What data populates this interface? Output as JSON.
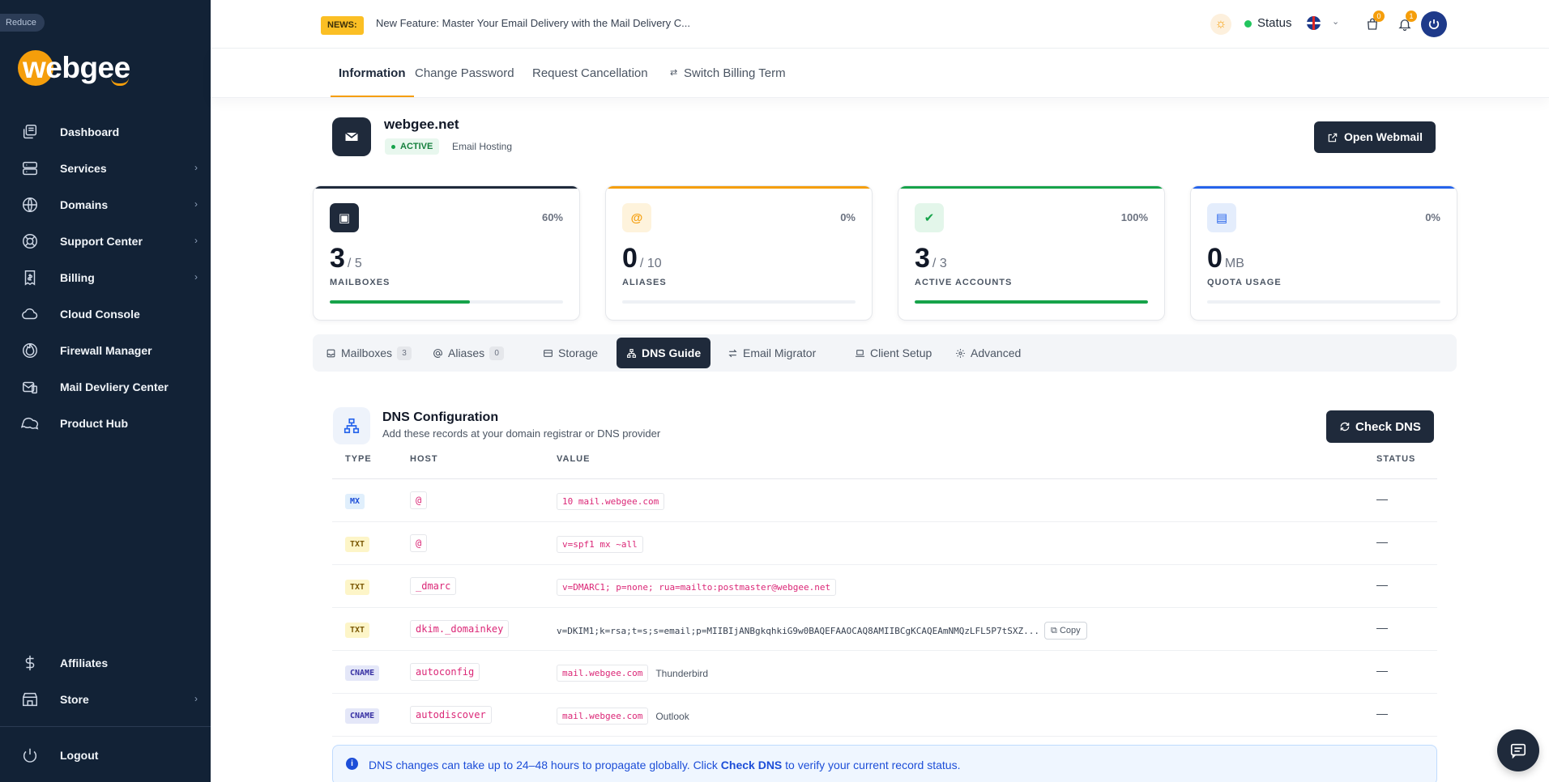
{
  "sidebar": {
    "reduce_label": "Reduce",
    "logo_text": "webgee",
    "items": [
      {
        "label": "Dashboard",
        "icon": "dashboard-icon"
      },
      {
        "label": "Services",
        "icon": "services-icon",
        "chevron": true
      },
      {
        "label": "Domains",
        "icon": "globe-icon",
        "chevron": true
      },
      {
        "label": "Support Center",
        "icon": "lifebuoy-icon",
        "chevron": true
      },
      {
        "label": "Billing",
        "icon": "billing-icon",
        "chevron": true
      },
      {
        "label": "Cloud Console",
        "icon": "cloud-icon"
      },
      {
        "label": "Firewall Manager",
        "icon": "firewall-icon"
      },
      {
        "label": "Mail Devliery Center",
        "icon": "mail-center-icon"
      },
      {
        "label": "Product Hub",
        "icon": "chat-bubbles-icon"
      }
    ],
    "bottom_items": [
      {
        "label": "Affiliates",
        "icon": "dollar-icon"
      },
      {
        "label": "Store",
        "icon": "store-icon",
        "chevron": true
      }
    ],
    "logout_label": "Logout"
  },
  "topbar": {
    "news_badge": "NEWS:",
    "news_text": "New Feature: Master Your Email Delivery with the Mail Delivery C...",
    "status_label": "Status",
    "cart_count": "0",
    "notifications_count": "1"
  },
  "subnav": {
    "tabs": [
      "Information",
      "Change Password",
      "Request Cancellation",
      "Switch Billing Term"
    ]
  },
  "service": {
    "domain": "webgee.net",
    "status": "ACTIVE",
    "plan": "Email Hosting",
    "open_webmail_label": "Open Webmail"
  },
  "stats": [
    {
      "value": "3",
      "sub": "/ 5",
      "label": "MAILBOXES",
      "pct": "60%",
      "fill": 0.6,
      "color": "#16a34a",
      "top_color": "#1f2a3b",
      "icon_bg": "#1f2a3b",
      "icon_color": "#ffffff",
      "icon": "inbox-icon",
      "glyph": "▣"
    },
    {
      "value": "0",
      "sub": "/ 10",
      "label": "ALIASES",
      "pct": "0%",
      "fill": 0,
      "color": "#f59e0b",
      "top_color": "#f59e0b",
      "icon_bg": "#fef3dc",
      "icon_color": "#f59e0b",
      "icon": "at-icon",
      "glyph": "@"
    },
    {
      "value": "3",
      "sub": "/ 3",
      "label": "ACTIVE ACCOUNTS",
      "pct": "100%",
      "fill": 1,
      "color": "#16a34a",
      "top_color": "#16a34a",
      "icon_bg": "#e3f6ea",
      "icon_color": "#16a34a",
      "icon": "check-circle-icon",
      "glyph": "✔"
    },
    {
      "value": "0",
      "sub": "MB",
      "label": "QUOTA USAGE",
      "pct": "0%",
      "fill": 0,
      "color": "#2563eb",
      "top_color": "#2563eb",
      "icon_bg": "#e4edfc",
      "icon_color": "#2563eb",
      "icon": "storage-icon",
      "glyph": "▤"
    }
  ],
  "content_tabs": [
    {
      "label": "Mailboxes",
      "count": "3"
    },
    {
      "label": "Aliases",
      "count": "0"
    },
    {
      "label": "Storage"
    },
    {
      "label": "DNS Guide",
      "active": true
    },
    {
      "label": "Email Migrator"
    },
    {
      "label": "Client Setup"
    },
    {
      "label": "Advanced"
    }
  ],
  "dns": {
    "title": "DNS Configuration",
    "subtitle": "Add these records at your domain registrar or DNS provider",
    "check_label": "Check DNS",
    "columns": [
      "TYPE",
      "HOST",
      "VALUE",
      "STATUS"
    ],
    "rows": [
      {
        "type": "MX",
        "host": "@",
        "value": "10 mail.webgee.com",
        "status": "—"
      },
      {
        "type": "TXT",
        "host": "@",
        "value": "v=spf1 mx ~all",
        "status": "—"
      },
      {
        "type": "TXT",
        "host": "_dmarc",
        "value": "v=DMARC1; p=none; rua=mailto:postmaster@webgee.net",
        "status": "—"
      },
      {
        "type": "TXT",
        "host": "dkim._domainkey",
        "value": "v=DKIM1;k=rsa;t=s;s=email;p=MIIBIjANBgkqhkiG9w0BAQEFAAOCAQ8AMIIBCgKCAQEAmNMQzLFL5P7tSXZ...",
        "copy": "Copy",
        "status": "—"
      },
      {
        "type": "CNAME",
        "host": "autoconfig",
        "value": "mail.webgee.com",
        "note": "Thunderbird",
        "status": "—"
      },
      {
        "type": "CNAME",
        "host": "autodiscover",
        "value": "mail.webgee.com",
        "note": "Outlook",
        "status": "—"
      }
    ],
    "info": {
      "before": "DNS changes can take up to 24–48 hours to propagate globally. Click ",
      "bold": "Check DNS",
      "after": " to verify your current record status."
    }
  }
}
